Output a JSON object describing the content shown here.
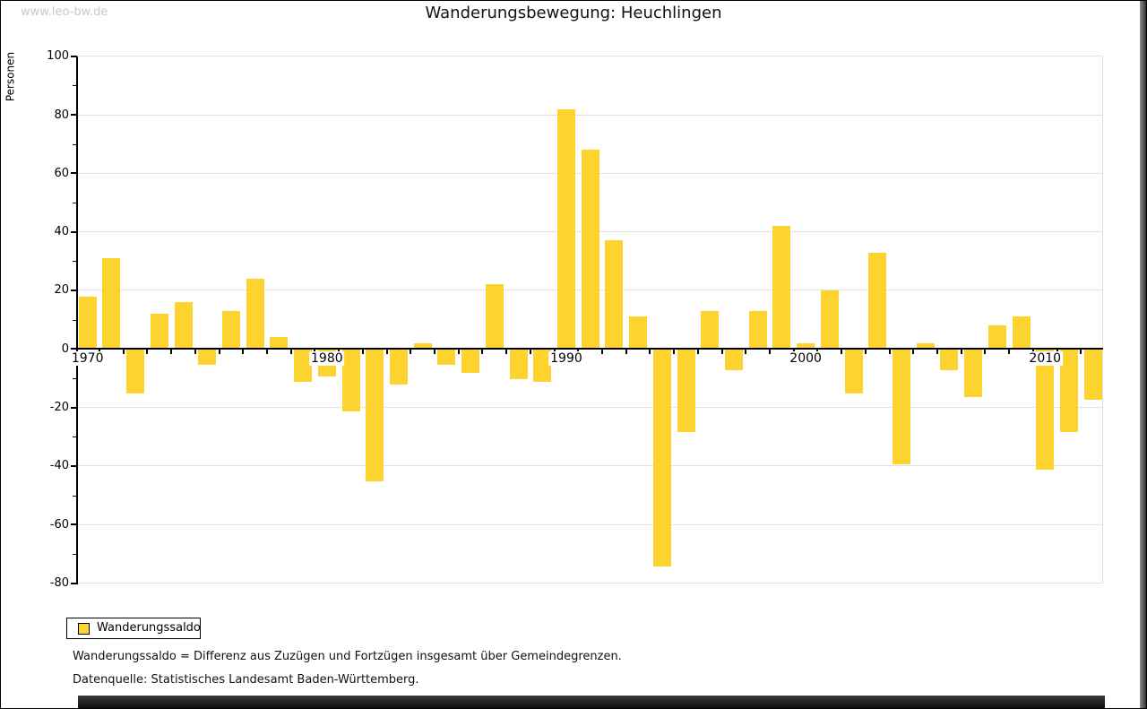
{
  "watermark": "www.leo-bw.de",
  "title": "Wanderungsbewegung: Heuchlingen",
  "legend": {
    "label": "Wanderungssaldo"
  },
  "footnotes": [
    "Wanderungssaldo = Differenz aus Zuzügen und Fortzügen insgesamt über Gemeindegrenzen.",
    "Datenquelle: Statistisches Landesamt Baden-Württemberg."
  ],
  "chart_data": {
    "type": "bar",
    "title": "Wanderungsbewegung: Heuchlingen",
    "xlabel": "",
    "ylabel": "Personen",
    "ylim": [
      -80,
      100
    ],
    "yticks": [
      100,
      80,
      60,
      40,
      20,
      0,
      -20,
      -40,
      -60,
      -80
    ],
    "ytick_minor_step": 10,
    "grid": true,
    "legend_position": "bottom-left",
    "bar_color": "#fcd32f",
    "series_name": "Wanderungssaldo",
    "categories": [
      1970,
      1971,
      1972,
      1973,
      1974,
      1975,
      1976,
      1977,
      1978,
      1979,
      1980,
      1981,
      1982,
      1983,
      1984,
      1985,
      1986,
      1987,
      1988,
      1989,
      1990,
      1991,
      1992,
      1993,
      1994,
      1995,
      1996,
      1997,
      1998,
      1999,
      2000,
      2001,
      2002,
      2003,
      2004,
      2005,
      2006,
      2007,
      2008,
      2009,
      2010,
      2011,
      2012
    ],
    "values": [
      18,
      31,
      -15,
      12,
      16,
      -5,
      13,
      24,
      4,
      -11,
      -9,
      -21,
      -45,
      -12,
      2,
      -5,
      -8,
      22,
      -10,
      -11,
      82,
      68,
      37,
      11,
      -74,
      -28,
      13,
      -7,
      13,
      42,
      2,
      20,
      -15,
      33,
      -39,
      2,
      -7,
      -16,
      8,
      11,
      -41,
      -28,
      -17
    ],
    "xtick_labels": [
      1970,
      1980,
      1990,
      2000,
      2010
    ]
  }
}
